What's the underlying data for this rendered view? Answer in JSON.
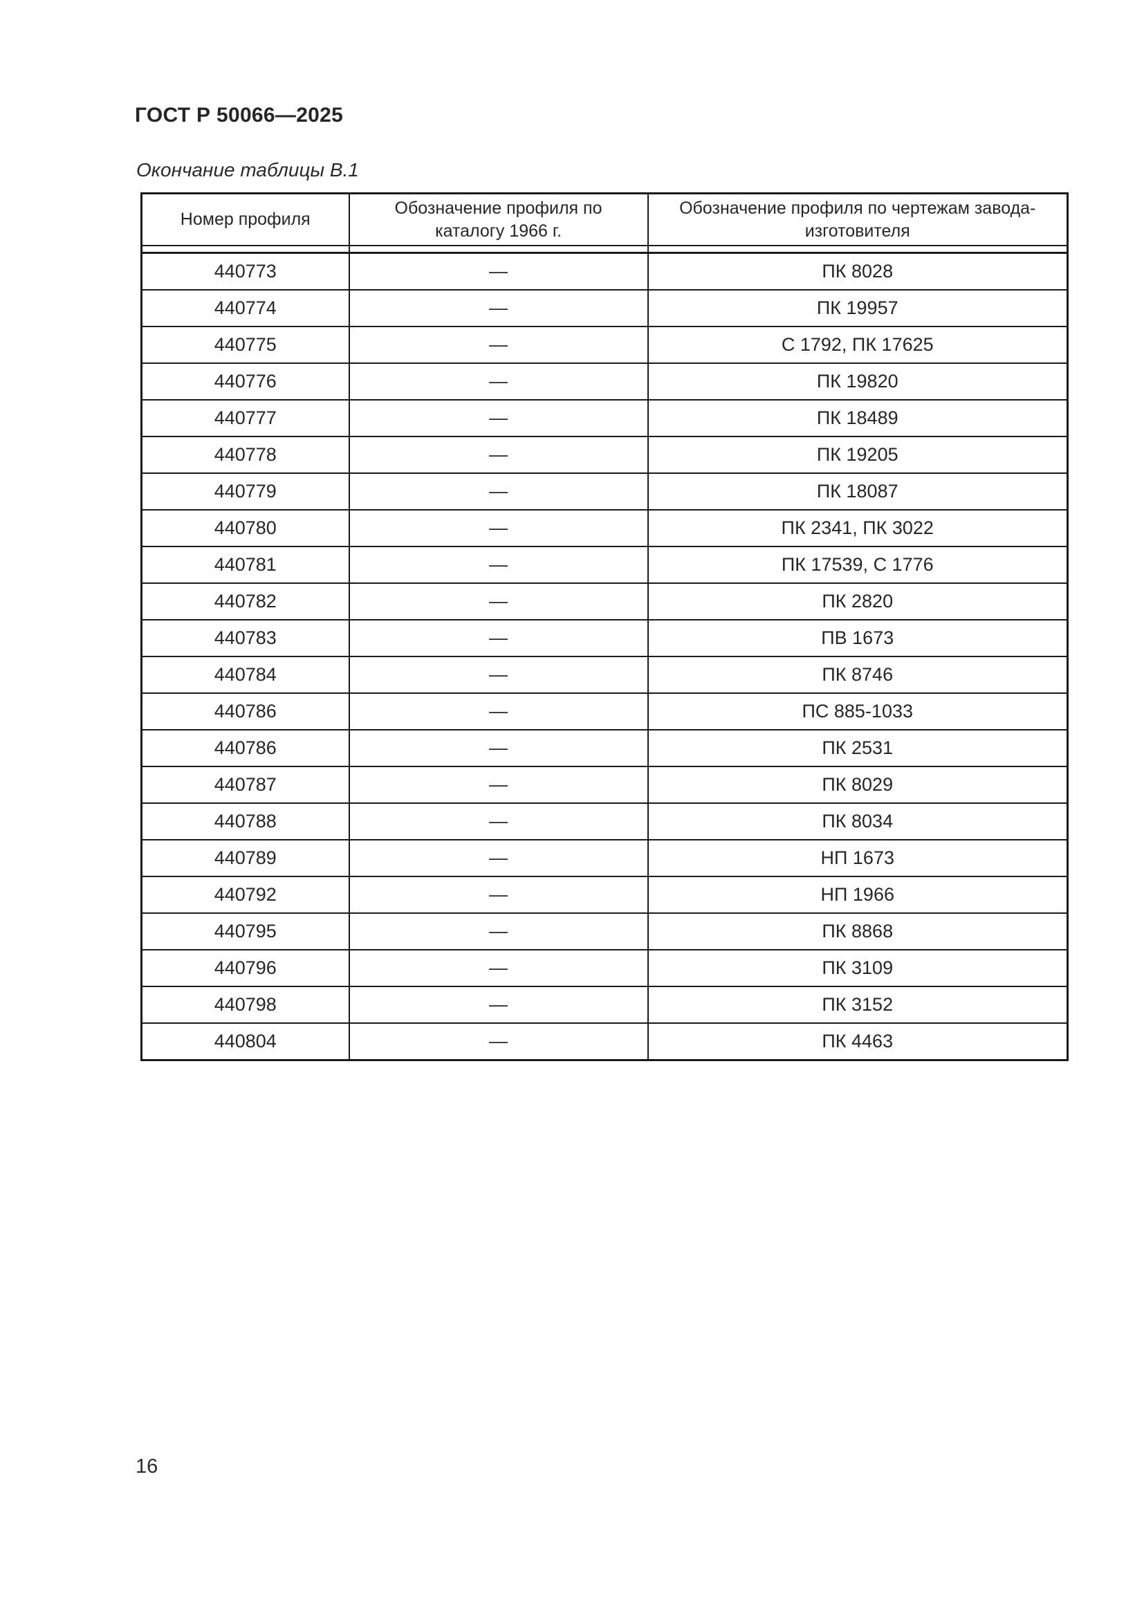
{
  "header": {
    "title": "ГОСТ Р 50066—2025"
  },
  "table": {
    "caption": "Окончание таблицы В.1",
    "columns": [
      "Номер профиля",
      "Обозначение профиля по каталогу 1966 г.",
      "Обозначение профиля по чертежам завода-изготовителя"
    ],
    "rows": [
      [
        "440773",
        "—",
        "ПК 8028"
      ],
      [
        "440774",
        "—",
        "ПК 19957"
      ],
      [
        "440775",
        "—",
        "С 1792, ПК 17625"
      ],
      [
        "440776",
        "—",
        "ПК 19820"
      ],
      [
        "440777",
        "—",
        "ПК 18489"
      ],
      [
        "440778",
        "—",
        "ПК 19205"
      ],
      [
        "440779",
        "—",
        "ПК 18087"
      ],
      [
        "440780",
        "—",
        "ПК 2341, ПК 3022"
      ],
      [
        "440781",
        "—",
        "ПК 17539, С 1776"
      ],
      [
        "440782",
        "—",
        "ПК 2820"
      ],
      [
        "440783",
        "—",
        "ПВ 1673"
      ],
      [
        "440784",
        "—",
        "ПК 8746"
      ],
      [
        "440786",
        "—",
        "ПС 885-1033"
      ],
      [
        "440786",
        "—",
        "ПК 2531"
      ],
      [
        "440787",
        "—",
        "ПК 8029"
      ],
      [
        "440788",
        "—",
        "ПК 8034"
      ],
      [
        "440789",
        "—",
        "НП 1673"
      ],
      [
        "440792",
        "—",
        "НП 1966"
      ],
      [
        "440795",
        "—",
        "ПК 8868"
      ],
      [
        "440796",
        "—",
        "ПК 3109"
      ],
      [
        "440798",
        "—",
        "ПК 3152"
      ],
      [
        "440804",
        "—",
        "ПК 4463"
      ]
    ]
  },
  "footer": {
    "page_number": "16"
  },
  "colors": {
    "ink": "#262626",
    "rule": "#1a1a1a",
    "paper": "#ffffff"
  }
}
